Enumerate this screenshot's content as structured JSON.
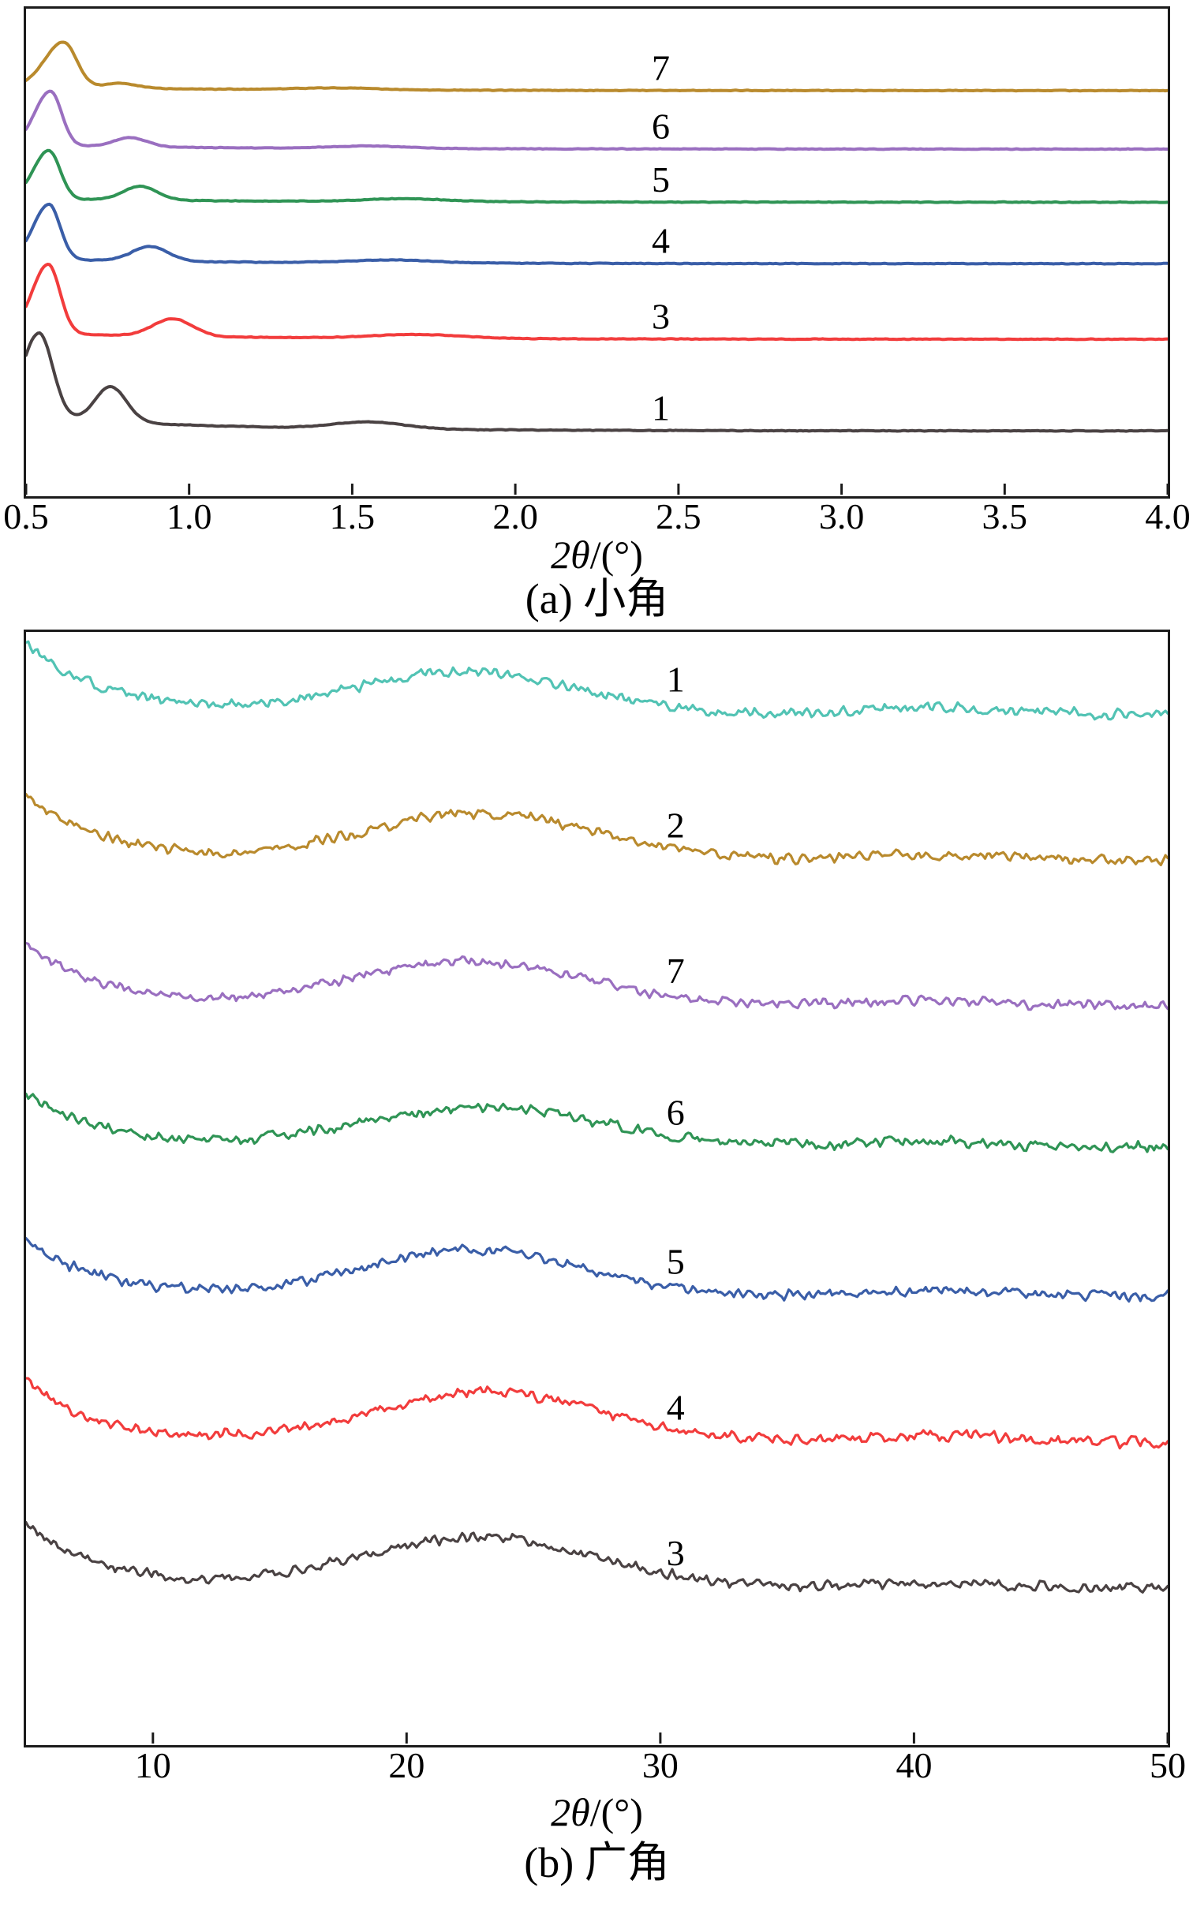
{
  "figure": {
    "background": "#ffffff",
    "axis_color": "#1b1b1b"
  },
  "chart_data": [
    {
      "id": "a",
      "type": "line",
      "caption": "(a) 小角",
      "xlabel": "2θ/(°)",
      "xlabel_italic": "2θ",
      "xlabel_suffix": "/(°)",
      "ylabel": "",
      "x_range": [
        0.5,
        4.0
      ],
      "x_ticks": [
        "0.5",
        "1.0",
        "1.5",
        "2.0",
        "2.5",
        "3.0",
        "3.5",
        "4.0"
      ],
      "x_tick_values": [
        0.5,
        1.0,
        1.5,
        2.0,
        2.5,
        3.0,
        3.5,
        4.0
      ],
      "grid": "off",
      "legend": "inline-curve-labels",
      "sample_step": 0.006,
      "stroke": 4,
      "label_x_frac": 0.556,
      "label_dy_frac": -0.047,
      "label_font_size": 46,
      "series": [
        {
          "label": "7",
          "color": "#b98a2d",
          "base": 0.168,
          "noise": 0.0008,
          "seed": 7,
          "decay": {
            "a": 0.008,
            "len": 0.6
          },
          "peaks": [
            {
              "c": 0.615,
              "h": 0.093,
              "sl": 0.058,
              "sr": 0.04
            },
            {
              "c": 0.79,
              "h": 0.01,
              "s": 0.05
            },
            {
              "c": 1.45,
              "h": 0.004,
              "s": 0.12
            }
          ]
        },
        {
          "label": "6",
          "color": "#9a6fc0",
          "base": 0.288,
          "noise": 0.0008,
          "seed": 6,
          "decay": {
            "a": 0.008,
            "len": 0.6
          },
          "peaks": [
            {
              "c": 0.575,
              "h": 0.112,
              "sl": 0.048,
              "sr": 0.034
            },
            {
              "c": 0.82,
              "h": 0.019,
              "s": 0.05
            },
            {
              "c": 1.55,
              "h": 0.005,
              "s": 0.12
            }
          ]
        },
        {
          "label": "5",
          "color": "#2f9455",
          "base": 0.397,
          "noise": 0.0008,
          "seed": 5,
          "decay": {
            "a": 0.008,
            "len": 0.6
          },
          "peaks": [
            {
              "c": 0.57,
              "h": 0.099,
              "sl": 0.047,
              "sr": 0.034
            },
            {
              "c": 0.85,
              "h": 0.028,
              "s": 0.052
            },
            {
              "c": 1.66,
              "h": 0.006,
              "s": 0.13
            }
          ]
        },
        {
          "label": "4",
          "color": "#3a5ea8",
          "base": 0.523,
          "noise": 0.0008,
          "seed": 4,
          "decay": {
            "a": 0.01,
            "len": 0.6
          },
          "peaks": [
            {
              "c": 0.57,
              "h": 0.113,
              "sl": 0.047,
              "sr": 0.034
            },
            {
              "c": 0.88,
              "h": 0.03,
              "s": 0.055
            },
            {
              "c": 1.62,
              "h": 0.006,
              "s": 0.13
            }
          ]
        },
        {
          "label": "3",
          "color": "#f23c3c",
          "base": 0.678,
          "noise": 0.0008,
          "seed": 3,
          "decay": {
            "a": 0.013,
            "len": 0.6
          },
          "peaks": [
            {
              "c": 0.568,
              "h": 0.142,
              "sl": 0.049,
              "sr": 0.036
            },
            {
              "c": 0.95,
              "h": 0.036,
              "s": 0.06
            },
            {
              "c": 1.7,
              "h": 0.008,
              "s": 0.14
            }
          ]
        },
        {
          "label": "1",
          "color": "#4a4243",
          "base": 0.866,
          "noise": 0.0008,
          "seed": 1,
          "decay": {
            "a": 0.03,
            "len": 0.55
          },
          "peaks": [
            {
              "c": 0.54,
              "h": 0.173,
              "sl": 0.05,
              "sr": 0.042
            },
            {
              "c": 0.76,
              "h": 0.072,
              "s": 0.048
            },
            {
              "c": 1.55,
              "h": 0.014,
              "s": 0.11
            }
          ]
        }
      ]
    },
    {
      "id": "b",
      "type": "line",
      "caption": "(b) 广角",
      "xlabel": "2θ/(°)",
      "xlabel_italic": "2θ",
      "xlabel_suffix": "/(°)",
      "ylabel": "",
      "x_range": [
        5,
        50
      ],
      "x_ticks": [
        "10",
        "20",
        "30",
        "40",
        "50"
      ],
      "x_tick_values": [
        10,
        20,
        30,
        40,
        50
      ],
      "grid": "off",
      "legend": "inline-curve-labels",
      "sample_step": 0.09,
      "stroke": 3.2,
      "label_x_frac": 0.569,
      "label_dy_frac": -0.0315,
      "label_font_size": 46,
      "series": [
        {
          "label": "1",
          "color": "#52c3b4",
          "base": 0.074,
          "noise": 0.0055,
          "seed": 21,
          "decay": {
            "a": 0.062,
            "len": 3.2
          },
          "peaks": [
            {
              "c": 22.3,
              "h": 0.038,
              "s": 4.3
            },
            {
              "c": 40.8,
              "h": 0.006,
              "s": 3.0
            }
          ]
        },
        {
          "label": "2",
          "color": "#b98a2d",
          "base": 0.205,
          "noise": 0.0055,
          "seed": 22,
          "decay": {
            "a": 0.06,
            "len": 3.0
          },
          "peaks": [
            {
              "c": 22.8,
              "h": 0.042,
              "s": 4.5
            },
            {
              "c": 41.0,
              "h": 0.005,
              "s": 3.0
            }
          ]
        },
        {
          "label": "7",
          "color": "#9a6fc0",
          "base": 0.336,
          "noise": 0.0055,
          "seed": 23,
          "decay": {
            "a": 0.055,
            "len": 3.0
          },
          "peaks": [
            {
              "c": 22.4,
              "h": 0.04,
              "s": 4.6
            },
            {
              "c": 40.5,
              "h": 0.005,
              "s": 3.0
            }
          ]
        },
        {
          "label": "6",
          "color": "#2f9455",
          "base": 0.463,
          "noise": 0.0058,
          "seed": 24,
          "decay": {
            "a": 0.05,
            "len": 2.8
          },
          "peaks": [
            {
              "c": 23.0,
              "h": 0.036,
              "s": 4.8
            },
            {
              "c": 40.5,
              "h": 0.005,
              "s": 3.0
            }
          ]
        },
        {
          "label": "5",
          "color": "#3a5ea8",
          "base": 0.597,
          "noise": 0.0055,
          "seed": 25,
          "decay": {
            "a": 0.052,
            "len": 2.8
          },
          "peaks": [
            {
              "c": 22.6,
              "h": 0.042,
              "s": 4.4
            },
            {
              "c": 40.8,
              "h": 0.005,
              "s": 3.0
            }
          ]
        },
        {
          "label": "4",
          "color": "#f23c3c",
          "base": 0.728,
          "noise": 0.0058,
          "seed": 26,
          "decay": {
            "a": 0.055,
            "len": 2.8
          },
          "peaks": [
            {
              "c": 23.1,
              "h": 0.045,
              "s": 4.6
            },
            {
              "c": 41.0,
              "h": 0.006,
              "s": 3.0
            }
          ]
        },
        {
          "label": "3",
          "color": "#4a4243",
          "base": 0.859,
          "noise": 0.0055,
          "seed": 27,
          "decay": {
            "a": 0.06,
            "len": 3.0
          },
          "peaks": [
            {
              "c": 22.8,
              "h": 0.045,
              "s": 4.8
            },
            {
              "c": 40.5,
              "h": 0.005,
              "s": 3.0
            }
          ]
        }
      ]
    }
  ]
}
